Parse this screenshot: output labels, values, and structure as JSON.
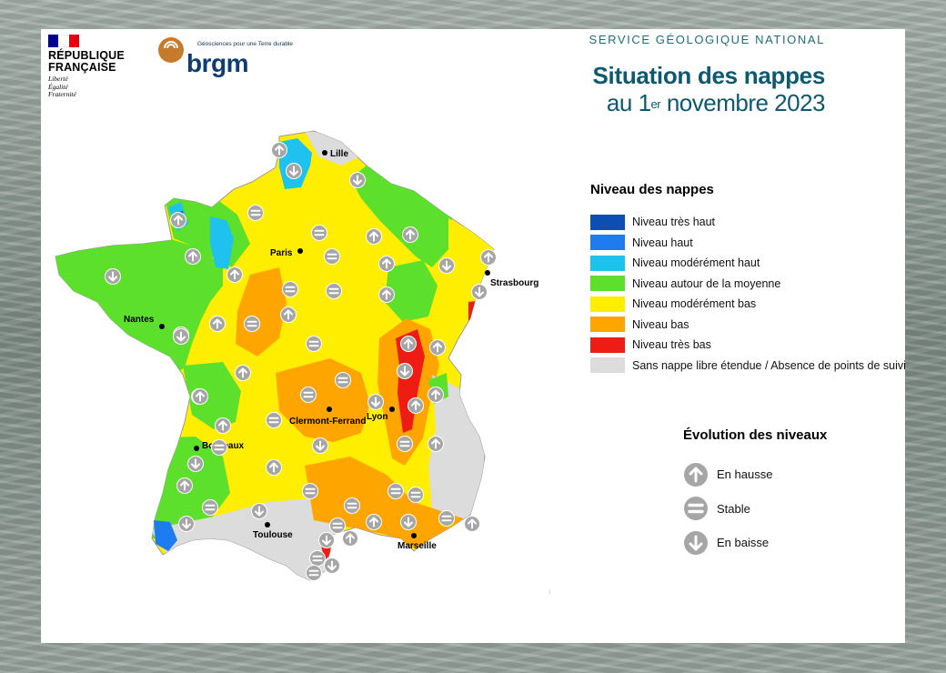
{
  "header": {
    "republique": {
      "line1": "RÉPUBLIQUE",
      "line2": "FRANÇAISE",
      "motto": [
        "Liberté",
        "Égalité",
        "Fraternité"
      ],
      "flag_colors": [
        "#000091",
        "#ffffff",
        "#e1000f"
      ]
    },
    "brgm": {
      "tagline": "Géosciences pour une Terre durable",
      "wordmark": "brgm"
    },
    "service": "SERVICE GÉOLOGIQUE NATIONAL",
    "title_line1": "Situation des nappes",
    "title_line2_prefix": "au 1",
    "title_line2_sup": "er",
    "title_line2_suffix": " novembre 2023"
  },
  "legend": {
    "title": "Niveau des nappes",
    "items": [
      {
        "label": "Niveau très haut",
        "color": "#0b4fb3"
      },
      {
        "label": "Niveau haut",
        "color": "#1f7cf0"
      },
      {
        "label": "Niveau modérément haut",
        "color": "#1fc2ef"
      },
      {
        "label": "Niveau autour de la moyenne",
        "color": "#5de02c"
      },
      {
        "label": "Niveau modérément bas",
        "color": "#ffee00"
      },
      {
        "label": "Niveau bas",
        "color": "#ffa500"
      },
      {
        "label": "Niveau très bas",
        "color": "#ee1c14"
      },
      {
        "label": "Sans nappe libre étendue / Absence de points de suivi",
        "color": "#dcdcdc"
      }
    ]
  },
  "evolution": {
    "title": "Évolution des niveaux",
    "items": [
      {
        "label": "En hausse",
        "icon": "arrow-up-icon"
      },
      {
        "label": "Stable",
        "icon": "equals-icon"
      },
      {
        "label": "En baisse",
        "icon": "arrow-down-icon"
      }
    ]
  },
  "map": {
    "cities": [
      "Lille",
      "Paris",
      "Strasbourg",
      "Nantes",
      "Lyon",
      "Clermont-Ferrand",
      "Bordeaux",
      "Toulouse",
      "Marseille"
    ]
  },
  "colors": {
    "title": "#0d5a70",
    "service": "#1e6c7c",
    "icon_gray": "#a6a6a6"
  }
}
